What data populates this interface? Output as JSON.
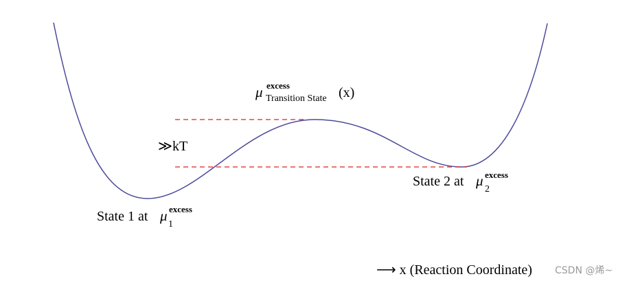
{
  "labels": {
    "transition_state": {
      "symbol": "μ",
      "superscript": "excess",
      "subscript": "Transition State",
      "suffix": "(x)"
    },
    "barrier": "≫kT",
    "state1": {
      "prefix": "State 1 at",
      "symbol": "μ",
      "subscript": "1",
      "superscript": "excess"
    },
    "state2": {
      "prefix": "State 2 at",
      "symbol": "μ",
      "subscript": "2",
      "superscript": "excess"
    },
    "axis": "⟶ x (Reaction Coordinate)"
  },
  "watermark": "CSDN @烯~"
}
